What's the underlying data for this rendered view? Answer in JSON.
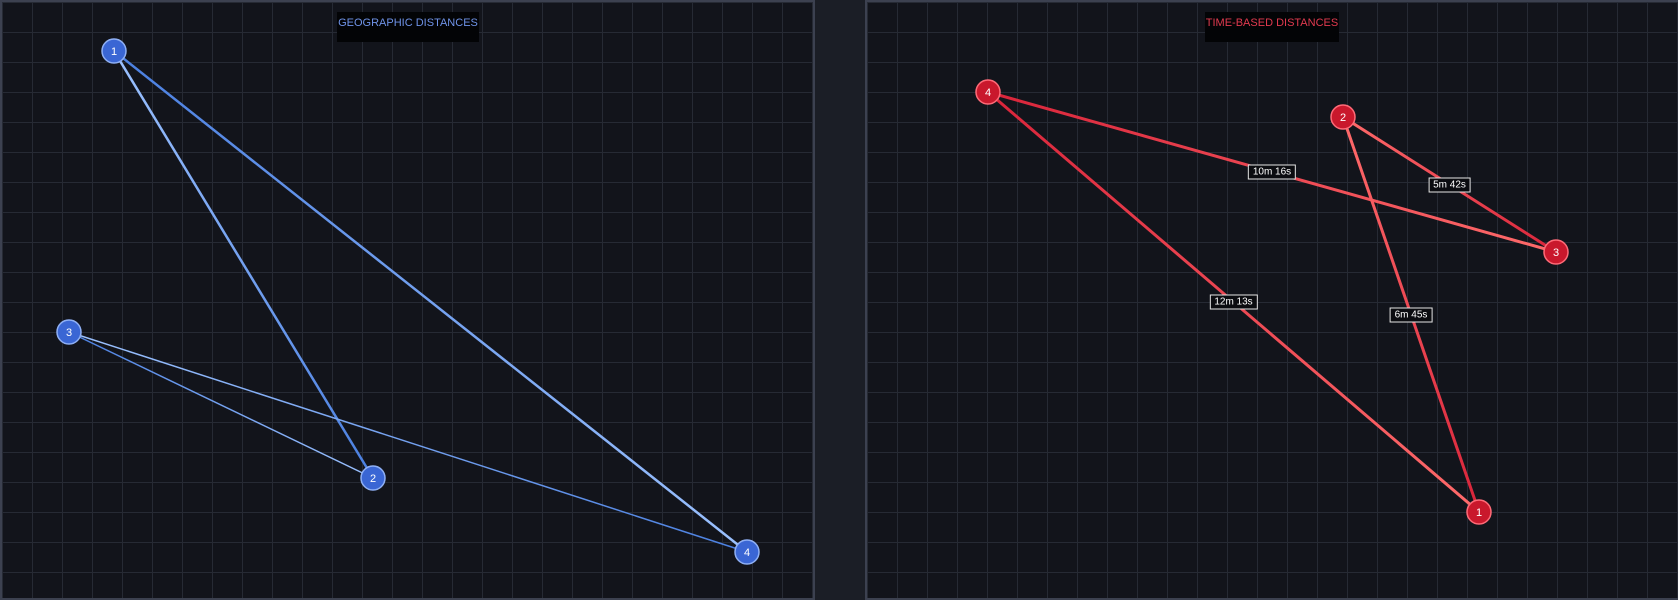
{
  "left_panel": {
    "title": "GEOGRAPHIC DISTANCES",
    "colors": {
      "node": "#3a66d4",
      "node_stroke": "#8fb0f5",
      "edge_a": "#4a7fe0",
      "edge_b": "#9cc2ff"
    },
    "nodes": [
      {
        "id": "1",
        "label": "1"
      },
      {
        "id": "2",
        "label": "2"
      },
      {
        "id": "3",
        "label": "3"
      },
      {
        "id": "4",
        "label": "4"
      }
    ],
    "edges": [
      {
        "from": "1",
        "to": "4"
      },
      {
        "from": "1",
        "to": "2"
      },
      {
        "from": "3",
        "to": "2"
      },
      {
        "from": "3",
        "to": "4"
      }
    ]
  },
  "right_panel": {
    "title": "TIME-BASED DISTANCES",
    "colors": {
      "node": "#c9182c",
      "node_stroke": "#ff6b78",
      "edge_a": "#d9243a",
      "edge_b": "#ff6b6b"
    },
    "nodes": [
      {
        "id": "1",
        "label": "1"
      },
      {
        "id": "2",
        "label": "2"
      },
      {
        "id": "3",
        "label": "3"
      },
      {
        "id": "4",
        "label": "4"
      }
    ],
    "edges": [
      {
        "from": "4",
        "to": "3",
        "label": "10m 16s"
      },
      {
        "from": "2",
        "to": "3",
        "label": "5m 42s"
      },
      {
        "from": "4",
        "to": "1",
        "label": "12m 13s"
      },
      {
        "from": "2",
        "to": "1",
        "label": "6m 45s"
      }
    ]
  }
}
